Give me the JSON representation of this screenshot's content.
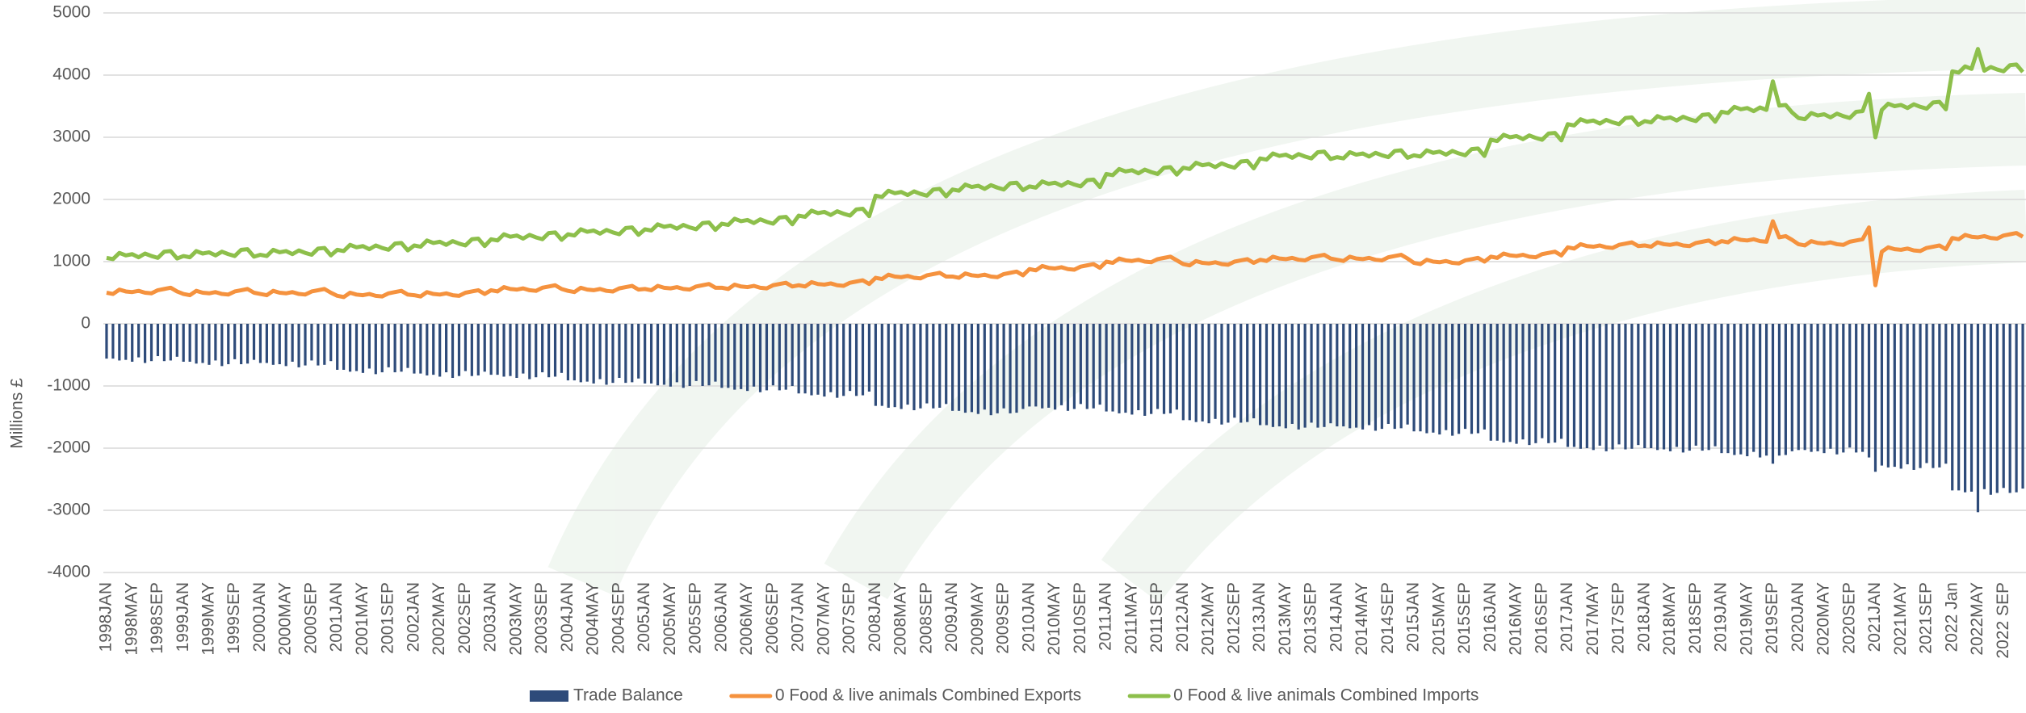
{
  "chart_data": {
    "type": "combo",
    "y_label": "Millions £",
    "ylim": [
      -4000,
      5000
    ],
    "yticks": [
      -4000,
      -3000,
      -2000,
      -1000,
      0,
      1000,
      2000,
      3000,
      4000,
      5000
    ],
    "grid": true,
    "legend": "bottom",
    "categories": [
      "1998JAN",
      null,
      null,
      null,
      "1998MAY",
      null,
      null,
      null,
      "1998SEP",
      null,
      null,
      null,
      "1999JAN",
      null,
      null,
      null,
      "1999MAY",
      null,
      null,
      null,
      "1999SEP",
      null,
      null,
      null,
      "2000JAN",
      null,
      null,
      null,
      "2000MAY",
      null,
      null,
      null,
      "2000SEP",
      null,
      null,
      null,
      "2001JAN",
      null,
      null,
      null,
      "2001MAY",
      null,
      null,
      null,
      "2001SEP",
      null,
      null,
      null,
      "2002JAN",
      null,
      null,
      null,
      "2002MAY",
      null,
      null,
      null,
      "2002SEP",
      null,
      null,
      null,
      "2003JAN",
      null,
      null,
      null,
      "2003MAY",
      null,
      null,
      null,
      "2003SEP",
      null,
      null,
      null,
      "2004JAN",
      null,
      null,
      null,
      "2004MAY",
      null,
      null,
      null,
      "2004SEP",
      null,
      null,
      null,
      "2005JAN",
      null,
      null,
      null,
      "2005MAY",
      null,
      null,
      null,
      "2005SEP",
      null,
      null,
      null,
      "2006JAN",
      null,
      null,
      null,
      "2006MAY",
      null,
      null,
      null,
      "2006SEP",
      null,
      null,
      null,
      "2007JAN",
      null,
      null,
      null,
      "2007MAY",
      null,
      null,
      null,
      "2007SEP",
      null,
      null,
      null,
      "2008JAN",
      null,
      null,
      null,
      "2008MAY",
      null,
      null,
      null,
      "2008SEP",
      null,
      null,
      null,
      "2009JAN",
      null,
      null,
      null,
      "2009MAY",
      null,
      null,
      null,
      "2009SEP",
      null,
      null,
      null,
      "2010JAN",
      null,
      null,
      null,
      "2010MAY",
      null,
      null,
      null,
      "2010SEP",
      null,
      null,
      null,
      "2011JAN",
      null,
      null,
      null,
      "2011MAY",
      null,
      null,
      null,
      "2011SEP",
      null,
      null,
      null,
      "2012JAN",
      null,
      null,
      null,
      "2012MAY",
      null,
      null,
      null,
      "2012SEP",
      null,
      null,
      null,
      "2013JAN",
      null,
      null,
      null,
      "2013MAY",
      null,
      null,
      null,
      "2013SEP",
      null,
      null,
      null,
      "2014JAN",
      null,
      null,
      null,
      "2014MAY",
      null,
      null,
      null,
      "2014SEP",
      null,
      null,
      null,
      "2015JAN",
      null,
      null,
      null,
      "2015MAY",
      null,
      null,
      null,
      "2015SEP",
      null,
      null,
      null,
      "2016JAN",
      null,
      null,
      null,
      "2016MAY",
      null,
      null,
      null,
      "2016SEP",
      null,
      null,
      null,
      "2017JAN",
      null,
      null,
      null,
      "2017MAY",
      null,
      null,
      null,
      "2017SEP",
      null,
      null,
      null,
      "2018JAN",
      null,
      null,
      null,
      "2018MAY",
      null,
      null,
      null,
      "2018SEP",
      null,
      null,
      null,
      "2019JAN",
      null,
      null,
      null,
      "2019MAY",
      null,
      null,
      null,
      "2019SEP",
      null,
      null,
      null,
      "2020JAN",
      null,
      null,
      null,
      "2020MAY",
      null,
      null,
      null,
      "2020SEP",
      null,
      null,
      null,
      "2021JAN",
      null,
      null,
      null,
      "2021MAY",
      null,
      null,
      null,
      "2021SEP",
      null,
      null,
      null,
      "2022 Jan",
      null,
      null,
      null,
      "2022MAY",
      null,
      null,
      null,
      "2022 SEP",
      null,
      null,
      null
    ],
    "series": [
      {
        "name": "Trade Balance",
        "type": "bar",
        "color": "#2e4b7a",
        "values": [
          -560,
          -560,
          -590,
          -580,
          -610,
          -540,
          -630,
          -600,
          -520,
          -600,
          -590,
          -530,
          -610,
          -610,
          -640,
          -630,
          -660,
          -590,
          -680,
          -650,
          -570,
          -650,
          -640,
          -580,
          -630,
          -630,
          -660,
          -650,
          -680,
          -610,
          -700,
          -670,
          -590,
          -670,
          -660,
          -600,
          -740,
          -740,
          -770,
          -760,
          -790,
          -720,
          -810,
          -780,
          -700,
          -780,
          -770,
          -710,
          -800,
          -800,
          -830,
          -820,
          -850,
          -780,
          -870,
          -840,
          -760,
          -840,
          -830,
          -770,
          -820,
          -820,
          -850,
          -840,
          -870,
          -800,
          -890,
          -860,
          -780,
          -860,
          -850,
          -790,
          -910,
          -910,
          -940,
          -930,
          -960,
          -890,
          -980,
          -950,
          -870,
          -950,
          -940,
          -880,
          -960,
          -960,
          -990,
          -980,
          -1010,
          -940,
          -1030,
          -1000,
          -920,
          -1000,
          -990,
          -930,
          -1030,
          -1030,
          -1060,
          -1050,
          -1080,
          -1010,
          -1100,
          -1070,
          -990,
          -1070,
          -1060,
          -1000,
          -1120,
          -1120,
          -1150,
          -1140,
          -1170,
          -1100,
          -1190,
          -1160,
          -1080,
          -1160,
          -1150,
          -1090,
          -1320,
          -1320,
          -1350,
          -1340,
          -1370,
          -1300,
          -1390,
          -1360,
          -1280,
          -1360,
          -1350,
          -1290,
          -1400,
          -1400,
          -1430,
          -1420,
          -1450,
          -1380,
          -1470,
          -1440,
          -1360,
          -1440,
          -1430,
          -1370,
          -1330,
          -1330,
          -1360,
          -1350,
          -1380,
          -1310,
          -1400,
          -1370,
          -1290,
          -1370,
          -1360,
          -1300,
          -1410,
          -1410,
          -1440,
          -1430,
          -1460,
          -1390,
          -1480,
          -1450,
          -1370,
          -1450,
          -1440,
          -1380,
          -1550,
          -1550,
          -1580,
          -1570,
          -1600,
          -1530,
          -1620,
          -1590,
          -1510,
          -1590,
          -1580,
          -1520,
          -1630,
          -1630,
          -1660,
          -1650,
          -1680,
          -1610,
          -1700,
          -1670,
          -1590,
          -1670,
          -1660,
          -1600,
          -1650,
          -1650,
          -1680,
          -1670,
          -1700,
          -1630,
          -1720,
          -1690,
          -1610,
          -1690,
          -1680,
          -1620,
          -1730,
          -1730,
          -1760,
          -1750,
          -1780,
          -1710,
          -1800,
          -1770,
          -1690,
          -1770,
          -1760,
          -1700,
          -1880,
          -1880,
          -1910,
          -1900,
          -1930,
          -1860,
          -1950,
          -1920,
          -1840,
          -1920,
          -1910,
          -1850,
          -1980,
          -1980,
          -2010,
          -2000,
          -2030,
          -1960,
          -2050,
          -2020,
          -1940,
          -2020,
          -2010,
          -1950,
          -2000,
          -2000,
          -2030,
          -2020,
          -2050,
          -1980,
          -2070,
          -2040,
          -1960,
          -2040,
          -2030,
          -1970,
          -2080,
          -2080,
          -2110,
          -2100,
          -2130,
          -2060,
          -2150,
          -2120,
          -2250,
          -2120,
          -2110,
          -2050,
          -2030,
          -2030,
          -2060,
          -2050,
          -2080,
          -2010,
          -2100,
          -2070,
          -1990,
          -2070,
          -2060,
          -2150,
          -2380,
          -2280,
          -2310,
          -2300,
          -2330,
          -2260,
          -2350,
          -2320,
          -2240,
          -2320,
          -2310,
          -2250,
          -2680,
          -2680,
          -2710,
          -2700,
          -3030,
          -2660,
          -2750,
          -2720,
          -2640,
          -2720,
          -2710,
          -2650
        ]
      },
      {
        "name": "0 Food & live animals Combined Exports",
        "type": "line",
        "color": "#f5923e",
        "values": [
          500,
          480,
          550,
          520,
          510,
          530,
          500,
          490,
          540,
          560,
          580,
          520,
          480,
          460,
          530,
          500,
          490,
          510,
          480,
          470,
          520,
          540,
          560,
          500,
          480,
          460,
          530,
          500,
          490,
          510,
          480,
          470,
          520,
          540,
          560,
          500,
          450,
          430,
          500,
          470,
          460,
          480,
          450,
          440,
          490,
          510,
          530,
          470,
          460,
          440,
          510,
          480,
          470,
          490,
          460,
          450,
          500,
          520,
          540,
          480,
          540,
          520,
          590,
          560,
          550,
          570,
          540,
          530,
          580,
          600,
          620,
          560,
          530,
          510,
          580,
          550,
          540,
          560,
          530,
          520,
          570,
          590,
          610,
          550,
          560,
          540,
          610,
          580,
          570,
          590,
          560,
          550,
          600,
          620,
          640,
          580,
          580,
          560,
          630,
          600,
          590,
          610,
          580,
          570,
          620,
          640,
          660,
          600,
          620,
          600,
          670,
          640,
          630,
          650,
          620,
          610,
          660,
          680,
          700,
          640,
          740,
          720,
          790,
          760,
          750,
          770,
          740,
          730,
          780,
          800,
          820,
          760,
          760,
          740,
          810,
          780,
          770,
          790,
          760,
          750,
          800,
          820,
          840,
          780,
          880,
          860,
          930,
          900,
          890,
          910,
          880,
          870,
          920,
          940,
          960,
          900,
          1000,
          980,
          1050,
          1020,
          1010,
          1030,
          1000,
          990,
          1040,
          1060,
          1080,
          1020,
          960,
          940,
          1010,
          980,
          970,
          990,
          960,
          950,
          1000,
          1020,
          1040,
          980,
          1030,
          1010,
          1080,
          1050,
          1040,
          1060,
          1030,
          1020,
          1070,
          1090,
          1110,
          1050,
          1030,
          1010,
          1080,
          1050,
          1040,
          1060,
          1030,
          1020,
          1070,
          1090,
          1110,
          1050,
          980,
          960,
          1030,
          1000,
          990,
          1010,
          980,
          970,
          1020,
          1040,
          1060,
          1000,
          1080,
          1060,
          1130,
          1100,
          1090,
          1110,
          1080,
          1070,
          1120,
          1140,
          1160,
          1100,
          1230,
          1210,
          1280,
          1250,
          1240,
          1260,
          1230,
          1220,
          1270,
          1290,
          1310,
          1250,
          1260,
          1240,
          1310,
          1280,
          1270,
          1290,
          1260,
          1250,
          1300,
          1320,
          1340,
          1280,
          1330,
          1310,
          1380,
          1350,
          1340,
          1360,
          1330,
          1320,
          1650,
          1390,
          1410,
          1350,
          1280,
          1260,
          1330,
          1300,
          1290,
          1310,
          1280,
          1270,
          1320,
          1340,
          1360,
          1550,
          620,
          1160,
          1230,
          1200,
          1190,
          1210,
          1180,
          1170,
          1220,
          1240,
          1260,
          1200,
          1380,
          1360,
          1430,
          1400,
          1390,
          1410,
          1380,
          1370,
          1420,
          1440,
          1460,
          1400
        ]
      },
      {
        "name": "0 Food & live animals Combined Imports",
        "type": "line",
        "color": "#8dbf4b",
        "values": [
          1060,
          1040,
          1140,
          1100,
          1120,
          1070,
          1130,
          1090,
          1060,
          1160,
          1170,
          1050,
          1090,
          1070,
          1170,
          1130,
          1150,
          1100,
          1160,
          1120,
          1090,
          1190,
          1200,
          1080,
          1110,
          1090,
          1190,
          1150,
          1170,
          1120,
          1180,
          1140,
          1110,
          1210,
          1220,
          1100,
          1190,
          1170,
          1270,
          1230,
          1250,
          1200,
          1260,
          1220,
          1190,
          1290,
          1300,
          1180,
          1260,
          1240,
          1340,
          1300,
          1320,
          1270,
          1330,
          1290,
          1260,
          1360,
          1370,
          1250,
          1360,
          1340,
          1440,
          1400,
          1420,
          1370,
          1430,
          1390,
          1360,
          1460,
          1470,
          1350,
          1440,
          1420,
          1520,
          1480,
          1500,
          1450,
          1510,
          1470,
          1440,
          1540,
          1550,
          1430,
          1520,
          1500,
          1600,
          1560,
          1580,
          1530,
          1590,
          1550,
          1520,
          1620,
          1630,
          1510,
          1610,
          1590,
          1690,
          1650,
          1670,
          1620,
          1680,
          1640,
          1610,
          1710,
          1720,
          1600,
          1740,
          1720,
          1820,
          1780,
          1800,
          1750,
          1810,
          1770,
          1740,
          1840,
          1850,
          1730,
          2060,
          2040,
          2140,
          2100,
          2120,
          2070,
          2130,
          2090,
          2060,
          2160,
          2170,
          2050,
          2160,
          2140,
          2240,
          2200,
          2220,
          2170,
          2230,
          2190,
          2160,
          2260,
          2270,
          2150,
          2210,
          2190,
          2290,
          2250,
          2270,
          2220,
          2280,
          2240,
          2210,
          2310,
          2320,
          2200,
          2410,
          2390,
          2490,
          2450,
          2470,
          2420,
          2480,
          2440,
          2410,
          2510,
          2520,
          2400,
          2510,
          2490,
          2590,
          2550,
          2570,
          2520,
          2580,
          2540,
          2510,
          2610,
          2620,
          2500,
          2660,
          2640,
          2740,
          2700,
          2720,
          2670,
          2730,
          2690,
          2660,
          2760,
          2770,
          2650,
          2680,
          2660,
          2760,
          2720,
          2740,
          2690,
          2750,
          2710,
          2680,
          2780,
          2790,
          2670,
          2710,
          2690,
          2790,
          2750,
          2770,
          2720,
          2780,
          2740,
          2710,
          2810,
          2820,
          2700,
          2960,
          2940,
          3040,
          3000,
          3020,
          2970,
          3030,
          2990,
          2960,
          3060,
          3070,
          2950,
          3210,
          3190,
          3290,
          3250,
          3270,
          3220,
          3280,
          3240,
          3210,
          3310,
          3320,
          3200,
          3260,
          3240,
          3340,
          3300,
          3320,
          3270,
          3330,
          3290,
          3260,
          3360,
          3370,
          3250,
          3410,
          3390,
          3490,
          3450,
          3470,
          3420,
          3480,
          3440,
          3900,
          3510,
          3520,
          3400,
          3310,
          3290,
          3390,
          3350,
          3370,
          3320,
          3380,
          3340,
          3310,
          3410,
          3420,
          3700,
          3000,
          3440,
          3540,
          3500,
          3520,
          3470,
          3530,
          3490,
          3460,
          3560,
          3570,
          3450,
          4060,
          4040,
          4140,
          4100,
          4420,
          4070,
          4130,
          4090,
          4060,
          4160,
          4170,
          4050
        ]
      }
    ]
  }
}
